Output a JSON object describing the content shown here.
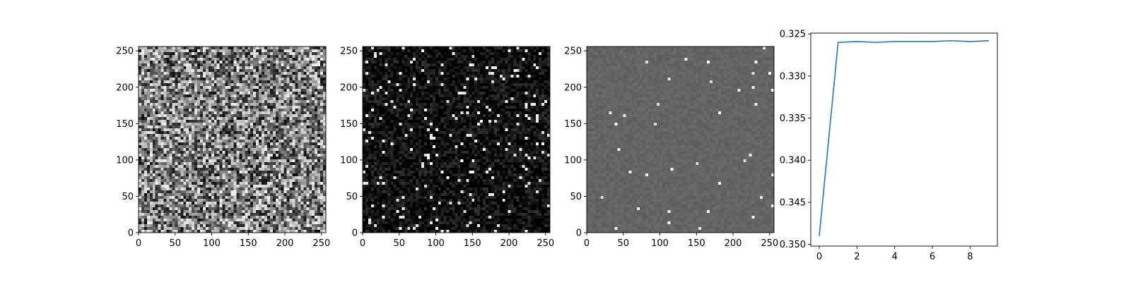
{
  "chart_data": [
    {
      "type": "heatmap",
      "style": "grayscale-noise",
      "noise": {
        "base": 0.5,
        "spread": 0.45,
        "spikes": 0.0
      },
      "xlim": [
        0,
        256
      ],
      "ylim": [
        256,
        0
      ],
      "xticks": [
        0,
        50,
        100,
        150,
        200,
        250
      ],
      "yticks": [
        0,
        50,
        100,
        150,
        200,
        250
      ],
      "xtick_labels": [
        "0",
        "50",
        "100",
        "150",
        "200",
        "250"
      ],
      "ytick_labels": [
        "0",
        "50",
        "100",
        "150",
        "200",
        "250"
      ]
    },
    {
      "type": "heatmap",
      "style": "dark-sparse-noise",
      "noise": {
        "base": 0.06,
        "spread": 0.14,
        "spikes": 0.05
      },
      "xlim": [
        0,
        256
      ],
      "ylim": [
        256,
        0
      ],
      "xticks": [
        0,
        50,
        100,
        150,
        200,
        250
      ],
      "yticks": [
        0,
        50,
        100,
        150,
        200,
        250
      ],
      "xtick_labels": [
        "0",
        "50",
        "100",
        "150",
        "200",
        "250"
      ],
      "ytick_labels": [
        "0",
        "50",
        "100",
        "150",
        "200",
        "250"
      ]
    },
    {
      "type": "heatmap",
      "style": "flat-gray-with-specks",
      "noise": {
        "base": 0.39,
        "spread": 0.03,
        "spikes": 0.01
      },
      "xlim": [
        0,
        256
      ],
      "ylim": [
        256,
        0
      ],
      "xticks": [
        0,
        50,
        100,
        150,
        200,
        250
      ],
      "yticks": [
        0,
        50,
        100,
        150,
        200,
        250
      ],
      "xtick_labels": [
        "0",
        "50",
        "100",
        "150",
        "200",
        "250"
      ],
      "ytick_labels": [
        "0",
        "50",
        "100",
        "150",
        "200",
        "250"
      ]
    },
    {
      "type": "line",
      "x": [
        0,
        1,
        2,
        3,
        4,
        5,
        6,
        7,
        8,
        9
      ],
      "series": [
        {
          "values": [
            0.349,
            0.326,
            0.3259,
            0.326,
            0.3259,
            0.3259,
            0.3259,
            0.3258,
            0.3259,
            0.3258
          ],
          "color": "#1f77b4"
        }
      ],
      "xlim": [
        -0.45,
        9.45
      ],
      "ylim": [
        0.3249,
        0.3502
      ],
      "xticks": [
        0,
        2,
        4,
        6,
        8
      ],
      "yticks": [
        0.325,
        0.33,
        0.335,
        0.34,
        0.345,
        0.35
      ],
      "xtick_labels": [
        "0",
        "2",
        "4",
        "6",
        "8"
      ],
      "ytick_labels": [
        "0.325",
        "0.330",
        "0.335",
        "0.340",
        "0.345",
        "0.350"
      ],
      "grid": false
    }
  ]
}
